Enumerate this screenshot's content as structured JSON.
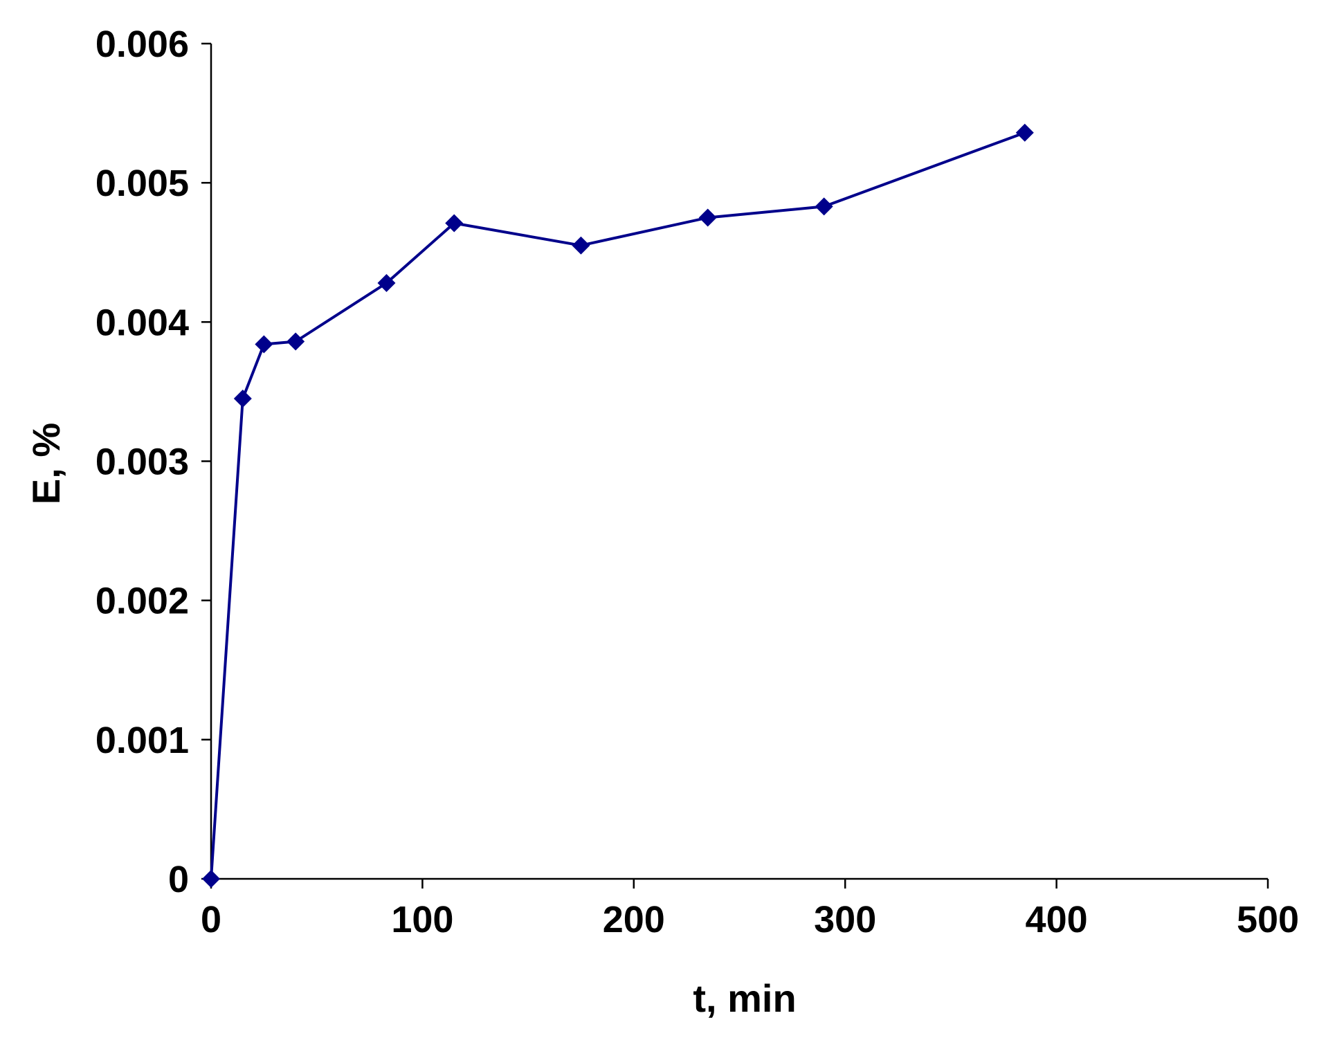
{
  "chart_data": {
    "type": "line",
    "title": "",
    "xlabel": "t, min",
    "ylabel": "E, %",
    "xlim": [
      0,
      500
    ],
    "ylim": [
      0,
      0.006
    ],
    "xticks": [
      0,
      100,
      200,
      300,
      400,
      500
    ],
    "yticks": [
      0,
      0.001,
      0.002,
      0.003,
      0.004,
      0.005,
      0.006
    ],
    "xtick_labels": [
      "0",
      "100",
      "200",
      "300",
      "400",
      "500"
    ],
    "ytick_labels": [
      "0",
      "0.001",
      "0.002",
      "0.003",
      "0.004",
      "0.005",
      "0.006"
    ],
    "grid": false,
    "legend": "none",
    "series": [
      {
        "color": "#00008B",
        "marker": "diamond",
        "x": [
          0,
          15,
          25,
          40,
          83,
          115,
          175,
          235,
          290,
          385
        ],
        "y": [
          0,
          0.00345,
          0.00384,
          0.00386,
          0.00428,
          0.00471,
          0.00455,
          0.00475,
          0.00483,
          0.00536
        ]
      }
    ]
  }
}
